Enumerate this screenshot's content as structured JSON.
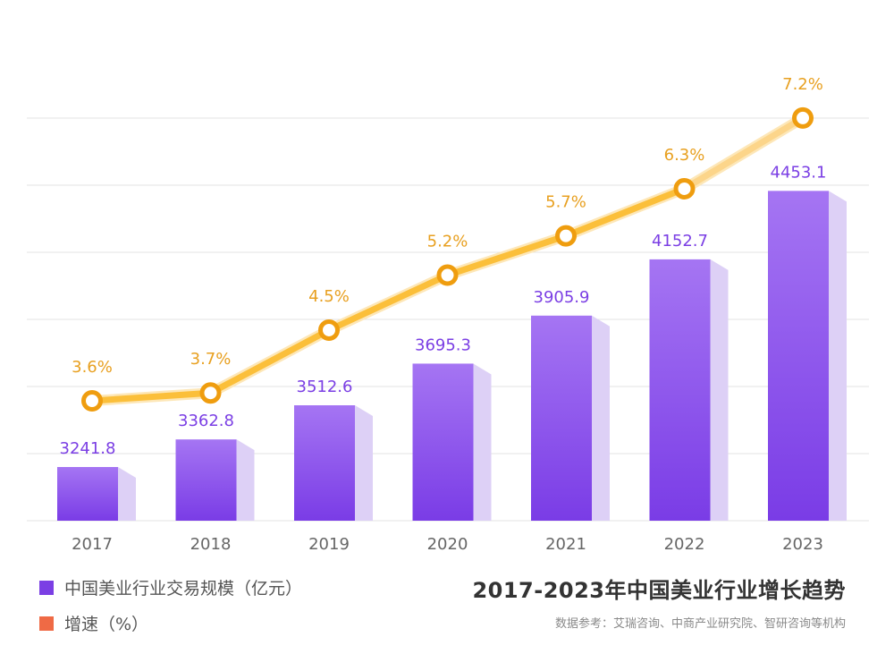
{
  "chart_data": {
    "type": "bar",
    "title": "2017-2023年中国美业行业增长趋势",
    "source": "数据参考：艾瑞咨询、中商产业研究院、智研咨询等机构",
    "categories": [
      "2017",
      "2018",
      "2019",
      "2020",
      "2021",
      "2022",
      "2023"
    ],
    "series": [
      {
        "name": "中国美业行业交易规模（亿元）",
        "type": "bar",
        "values": [
          3241.8,
          3362.8,
          3512.6,
          3695.3,
          3905.9,
          4152.7,
          4453.1
        ],
        "labels": [
          "3241.8",
          "3362.8",
          "3512.6",
          "3695.3",
          "3905.9",
          "4152.7",
          "4453.1"
        ],
        "color": "#7b3fe4"
      },
      {
        "name": "增速（%）",
        "type": "line",
        "values": [
          3.6,
          3.7,
          4.5,
          5.2,
          5.7,
          6.3,
          7.2
        ],
        "labels": [
          "3.6%",
          "3.7%",
          "4.5%",
          "5.2%",
          "5.7%",
          "6.3%",
          "7.2%"
        ],
        "color": "#f0a316"
      }
    ],
    "legend_colors": [
      "#7b3fe4",
      "#ef6a45"
    ],
    "legend_position": "bottom-left",
    "grid": true
  }
}
